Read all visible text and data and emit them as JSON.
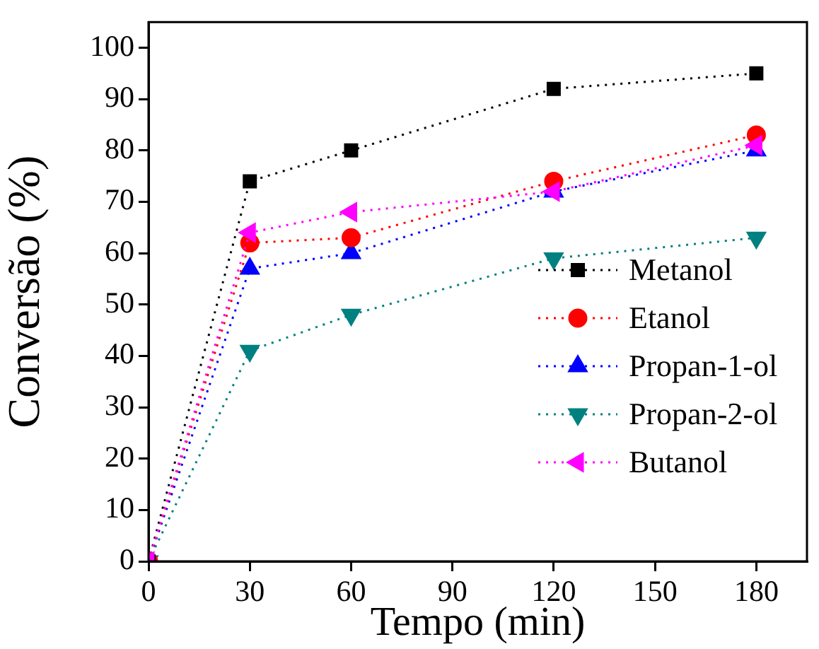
{
  "chart_data": {
    "type": "line",
    "xlabel": "Tempo (min)",
    "ylabel": "Conversão (%)",
    "x": [
      0,
      30,
      60,
      120,
      180
    ],
    "series": [
      {
        "name": "Metanol",
        "color": "#000000",
        "marker": "square",
        "values": [
          0,
          74,
          80,
          92,
          95
        ]
      },
      {
        "name": "Etanol",
        "color": "#ff0000",
        "marker": "circle",
        "values": [
          0,
          62,
          63,
          74,
          83
        ]
      },
      {
        "name": "Propan-1-ol",
        "color": "#0000ff",
        "marker": "triangle",
        "values": [
          0,
          57,
          60,
          72,
          80
        ]
      },
      {
        "name": "Propan-2-ol",
        "color": "#008080",
        "marker": "triangle_down",
        "values": [
          0,
          41,
          48,
          59,
          63
        ]
      },
      {
        "name": "Butanol",
        "color": "#ff00ff",
        "marker": "triangle_left",
        "values": [
          0,
          64,
          68,
          72,
          81
        ]
      }
    ],
    "xlim": [
      0,
      195
    ],
    "ylim": [
      0,
      105
    ],
    "xticks": [
      0,
      30,
      60,
      90,
      120,
      150,
      180
    ],
    "yticks": [
      0,
      10,
      20,
      30,
      40,
      50,
      60,
      70,
      80,
      90,
      100
    ],
    "grid": false,
    "legend": "bottom right",
    "line_style": "dotted"
  }
}
